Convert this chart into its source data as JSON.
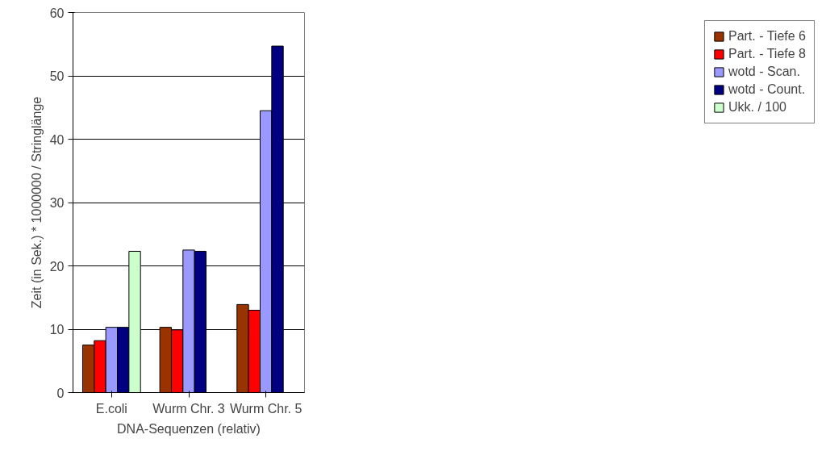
{
  "chart_data": {
    "type": "bar",
    "xlabel": "DNA-Sequenzen (relativ)",
    "ylabel": "Zeit (in Sek.) * 1000000 / Stringlänge",
    "categories": [
      "E.coli",
      "Wurm Chr. 3",
      "Wurm Chr. 5"
    ],
    "series": [
      {
        "name": "Part. - Tiefe 6",
        "color": "#993300",
        "values": [
          7.5,
          10.3,
          13.9
        ]
      },
      {
        "name": "Part. - Tiefe 8",
        "color": "#ff0000",
        "values": [
          8.2,
          9.9,
          13.0
        ]
      },
      {
        "name": "wotd - Scan.",
        "color": "#9999ff",
        "values": [
          10.3,
          22.5,
          44.5
        ]
      },
      {
        "name": "wotd - Count.",
        "color": "#000080",
        "values": [
          10.3,
          22.3,
          54.7
        ]
      },
      {
        "name": "Ukk. / 100",
        "color": "#ccffcc",
        "values": [
          22.3,
          null,
          null
        ]
      }
    ],
    "ylim": [
      0,
      60
    ],
    "yticks": [
      0,
      10,
      20,
      30,
      40,
      50,
      60
    ],
    "grid": "y",
    "legend": "right"
  }
}
